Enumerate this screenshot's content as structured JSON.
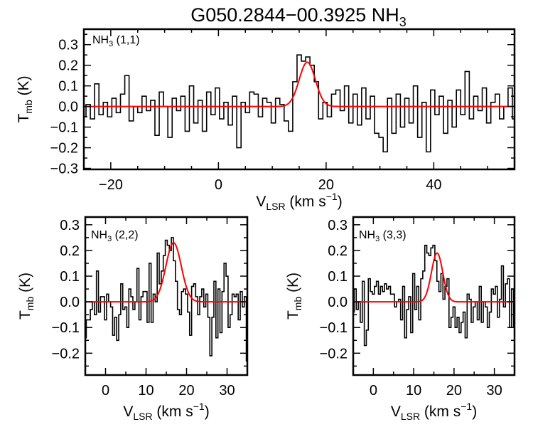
{
  "title": {
    "main": "G050.2844−00.3925 NH",
    "sub": "3"
  },
  "chart_data": [
    {
      "type": "line",
      "step": true,
      "panel_label": {
        "main": "NH",
        "sub": "3",
        "rest": " (1,1)"
      },
      "xlabel": {
        "main": "V",
        "sub": "LSR",
        "rest": " (km s",
        "sup": "−1",
        "end": ")"
      },
      "ylabel": {
        "main": "T",
        "sub": "mb",
        "rest": " (K)"
      },
      "xlim": [
        -25,
        55
      ],
      "ylim": [
        -0.305,
        0.375
      ],
      "xticks": [
        -20,
        0,
        20,
        40
      ],
      "xtick_labels": [
        "−20",
        "0",
        "20",
        "40"
      ],
      "yticks": [
        -0.3,
        -0.2,
        -0.1,
        0.0,
        0.1,
        0.2,
        0.3
      ],
      "ytick_labels": [
        "−0.3",
        "−0.2",
        "−0.1",
        "0.0",
        "0.1",
        "0.2",
        "0.3"
      ],
      "x_start": -25,
      "x_step": 0.8,
      "values": [
        -0.05,
        0.01,
        -0.06,
        0.11,
        -0.04,
        0.02,
        -0.05,
        0.04,
        -0.03,
        0.06,
        0.15,
        -0.07,
        0.0,
        -0.03,
        0.05,
        -0.02,
        0.03,
        -0.14,
        0.07,
        0.0,
        -0.15,
        0.04,
        -0.02,
        0.05,
        -0.12,
        0.1,
        -0.08,
        0.03,
        -0.12,
        0.07,
        -0.04,
        0.09,
        -0.06,
        0.02,
        -0.09,
        0.05,
        -0.2,
        0.02,
        -0.03,
        0.07,
        0.06,
        -0.05,
        0.04,
        0.02,
        -0.08,
        0.04,
        0.01,
        -0.07,
        -0.12,
        0.12,
        0.25,
        0.22,
        0.24,
        0.2,
        0.12,
        -0.06,
        0.02,
        -0.05,
        0.06,
        0.08,
        -0.02,
        0.1,
        -0.08,
        0.06,
        -0.09,
        0.09,
        -0.06,
        0.05,
        -0.13,
        -0.15,
        -0.22,
        0.04,
        -0.13,
        0.06,
        -0.1,
        0.04,
        -0.08,
        0.1,
        -0.15,
        0.02,
        -0.22,
        0.08,
        -0.04,
        0.05,
        -0.13,
        0.03,
        -0.1,
        0.08,
        -0.04,
        0.17,
        -0.06,
        0.05,
        -0.02,
        0.09,
        -0.08,
        0.02,
        0.06,
        -0.06,
        0.0,
        0.09,
        -0.06
      ],
      "fit": {
        "type": "gaussian",
        "amplitude": 0.215,
        "center": 16.5,
        "sigma": 1.5
      },
      "colors": {
        "spectrum": "#000000",
        "fit": "#ff0000"
      }
    },
    {
      "type": "line",
      "step": true,
      "panel_label": {
        "main": "NH",
        "sub": "3",
        "rest": " (2,2)"
      },
      "xlabel": {
        "main": "V",
        "sub": "LSR",
        "rest": " (km s",
        "sup": "−1",
        "end": ")"
      },
      "ylabel": {
        "main": "T",
        "sub": "mb",
        "rest": " (K)"
      },
      "xlim": [
        -5,
        35
      ],
      "ylim": [
        -0.285,
        0.33
      ],
      "xticks": [
        0,
        10,
        20,
        30
      ],
      "xtick_labels": [
        "0",
        "10",
        "20",
        "30"
      ],
      "yticks": [
        -0.2,
        -0.1,
        0.0,
        0.1,
        0.2,
        0.3
      ],
      "ytick_labels": [
        "−0.2",
        "−0.1",
        "0.0",
        "0.1",
        "0.2",
        "0.3"
      ],
      "x_start": -5,
      "x_step": 0.5,
      "values": [
        -0.14,
        -0.07,
        -0.07,
        -0.03,
        0.0,
        -0.05,
        0.12,
        -0.04,
        0.02,
        0.02,
        -0.07,
        0.03,
        0.0,
        -0.02,
        -0.13,
        -0.06,
        -0.15,
        -0.05,
        0.07,
        -0.03,
        -0.02,
        -0.1,
        0.05,
        0.02,
        -0.03,
        0.0,
        0.13,
        -0.07,
        0.02,
        0.04,
        0.04,
        -0.08,
        0.15,
        -0.08,
        0.03,
        0.0,
        0.19,
        0.07,
        0.12,
        0.18,
        0.24,
        0.22,
        0.2,
        0.25,
        0.16,
        0.08,
        -0.03,
        -0.05,
        0.04,
        0.05,
        0.03,
        -0.04,
        -0.13,
        0.06,
        0.07,
        0.02,
        -0.05,
        0.02,
        0.05,
        -0.02,
        0.03,
        -0.06,
        -0.21,
        -0.06,
        0.08,
        -0.14,
        0.05,
        -0.12,
        0.04,
        0.15,
        0.1,
        -0.1,
        -0.05,
        0.03,
        0.02,
        0.03,
        -0.07,
        0.04,
        -0.02,
        0.02,
        -0.23
      ],
      "fit": {
        "type": "gaussian",
        "amplitude": 0.23,
        "center": 16.8,
        "sigma": 1.9
      },
      "colors": {
        "spectrum": "#000000",
        "fit": "#ff0000"
      }
    },
    {
      "type": "line",
      "step": true,
      "panel_label": {
        "main": "NH",
        "sub": "3",
        "rest": " (3,3)"
      },
      "xlabel": {
        "main": "V",
        "sub": "LSR",
        "rest": " (km s",
        "sup": "−1",
        "end": ")"
      },
      "ylabel": {
        "main": "T",
        "sub": "mb",
        "rest": " (K)"
      },
      "xlim": [
        -5,
        35
      ],
      "ylim": [
        -0.285,
        0.33
      ],
      "xticks": [
        0,
        10,
        20,
        30
      ],
      "xtick_labels": [
        "0",
        "10",
        "20",
        "30"
      ],
      "yticks": [
        -0.2,
        -0.1,
        0.0,
        0.1,
        0.2,
        0.3
      ],
      "ytick_labels": [
        "−0.2",
        "−0.1",
        "0.0",
        "0.1",
        "0.2",
        "0.3"
      ],
      "x_start": -5,
      "x_step": 0.5,
      "values": [
        -0.04,
        0.05,
        -0.03,
        0.0,
        -0.08,
        0.08,
        -0.17,
        -0.11,
        0.09,
        0.04,
        0.03,
        0.06,
        0.08,
        0.03,
        0.06,
        0.04,
        0.07,
        0.05,
        0.06,
        0.03,
        0.03,
        -0.02,
        0.0,
        0.01,
        -0.07,
        0.06,
        -0.14,
        -0.03,
        0.02,
        -0.12,
        0.11,
        -0.03,
        0.06,
        -0.07,
        0.09,
        0.12,
        0.22,
        0.19,
        0.18,
        0.21,
        0.22,
        0.16,
        0.08,
        0.04,
        0.11,
        0.01,
        0.06,
        0.09,
        -0.1,
        -0.06,
        -0.02,
        -0.1,
        -0.06,
        -0.12,
        -0.08,
        -0.04,
        -0.14,
        0.03,
        0.01,
        -0.08,
        -0.02,
        0.0,
        -0.07,
        0.06,
        -0.08,
        0.0,
        -0.02,
        -0.1,
        -0.04,
        0.05,
        0.03,
        0.06,
        -0.06,
        0.01,
        0.14,
        -0.02,
        0.07,
        0.09,
        -0.1,
        0.05,
        -0.1
      ],
      "fit": {
        "type": "gaussian",
        "amplitude": 0.19,
        "center": 15.8,
        "sigma": 1.4
      },
      "colors": {
        "spectrum": "#000000",
        "fit": "#ff0000"
      }
    }
  ]
}
